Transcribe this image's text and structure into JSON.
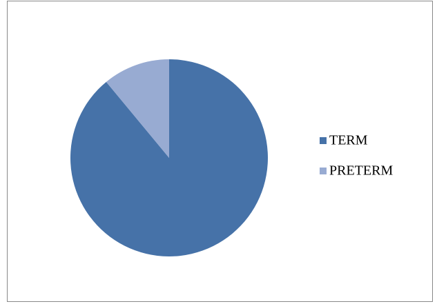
{
  "chart_data": {
    "type": "pie",
    "categories": [
      "TERM",
      "PRETERM"
    ],
    "values": [
      89,
      11
    ],
    "colors": [
      "#4672a8",
      "#98abd2"
    ],
    "legend": "right"
  }
}
